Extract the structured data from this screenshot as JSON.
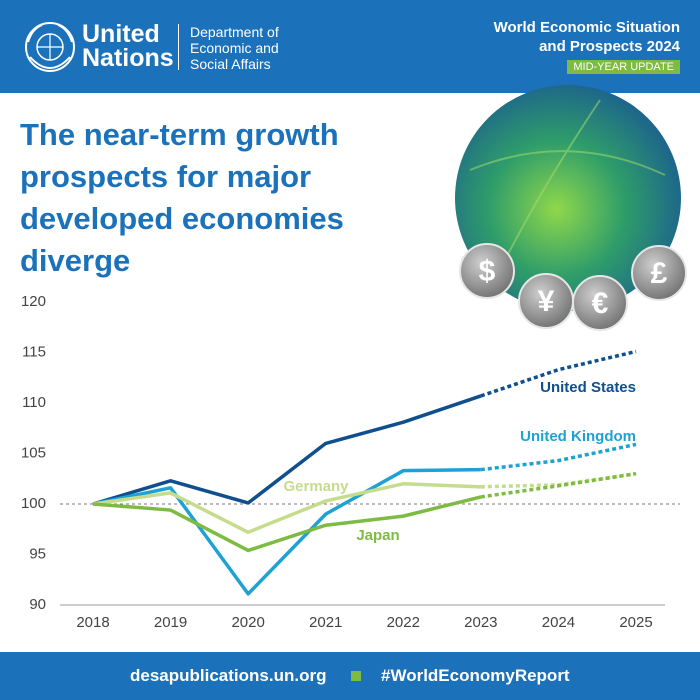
{
  "header": {
    "org_line1": "United",
    "org_line2": "Nations",
    "dept_line1": "Department of",
    "dept_line2": "Economic and",
    "dept_line3": "Social Affairs",
    "report_line1": "World Economic Situation",
    "report_line2": "and Prospects 2024",
    "badge": "MID-YEAR UPDATE"
  },
  "coins": [
    "$",
    "¥",
    "€",
    "£"
  ],
  "footer": {
    "site": "desapublications.un.org",
    "hashtag": "#WorldEconomyReport"
  },
  "chart_data": {
    "type": "line",
    "title": "The near-term growth prospects for major developed economies diverge",
    "categories": [
      "2018",
      "2019",
      "2020",
      "2021",
      "2022",
      "2023",
      "2024",
      "2025"
    ],
    "forecast_from": "2023",
    "reference_line": 100,
    "ylim": [
      90,
      120
    ],
    "yticks": [
      90,
      95,
      100,
      105,
      110,
      115,
      120
    ],
    "series": [
      {
        "name": "United States",
        "color": "#0f4f8e",
        "values": [
          100,
          102.3,
          100.1,
          106,
          108.1,
          110.7,
          113.3,
          115.1
        ]
      },
      {
        "name": "United Kingdom",
        "color": "#1ea1d3",
        "values": [
          100,
          101.6,
          91.1,
          99,
          103.3,
          103.4,
          104.3,
          105.9
        ]
      },
      {
        "name": "Germany",
        "color": "#c5dc8c",
        "values": [
          100,
          101.1,
          97.2,
          100.3,
          102,
          101.7,
          101.9,
          103
        ]
      },
      {
        "name": "Japan",
        "color": "#7dbb42",
        "values": [
          100,
          99.4,
          95.4,
          97.9,
          98.8,
          100.7,
          101.8,
          103
        ]
      }
    ]
  }
}
